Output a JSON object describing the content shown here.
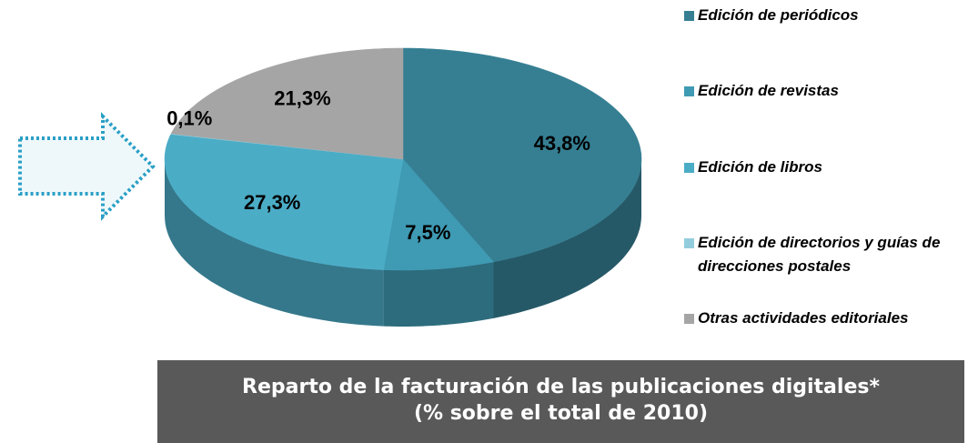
{
  "chart_data": {
    "type": "pie",
    "title": "Reparto de la facturación de las publicaciones digitales*",
    "subtitle": "(% sobre el total de 2010)",
    "categories": [
      "Edición de periódicos",
      "Edición de revistas",
      "Edición de libros",
      "Edición de directorios y guías de direcciones postales",
      "Otras actividades editoriales"
    ],
    "values": [
      43.8,
      7.5,
      27.3,
      0.1,
      21.3
    ],
    "value_labels": [
      "43,8%",
      "7,5%",
      "27,3%",
      "0,1%",
      "21,3%"
    ],
    "colors": [
      "#367f93",
      "#3f9ab3",
      "#4bacc6",
      "#93cddd",
      "#a5a5a5"
    ],
    "legend": "right"
  }
}
